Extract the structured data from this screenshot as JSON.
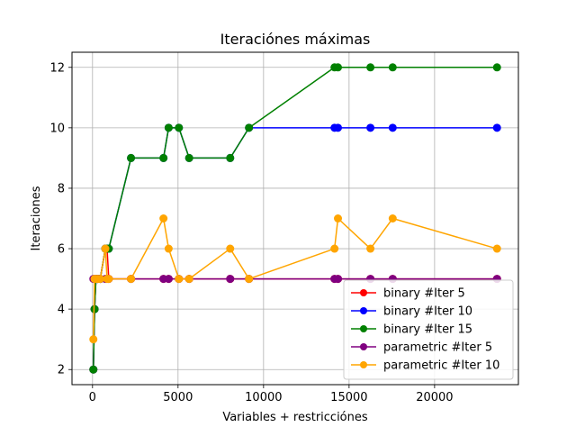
{
  "chart_data": {
    "type": "line",
    "title": "Iteraciónes máximas",
    "xlabel": "Variables + restricciónes",
    "ylabel": "Iteraciones",
    "xlim": [
      -1200,
      24900
    ],
    "ylim": [
      1.5,
      12.5
    ],
    "xticks": [
      0,
      5000,
      10000,
      15000,
      20000
    ],
    "yticks": [
      2,
      4,
      6,
      8,
      10,
      12
    ],
    "grid": true,
    "legend_position": "lower-right",
    "x": [
      50,
      120,
      200,
      300,
      450,
      750,
      850,
      950,
      2250,
      4150,
      4450,
      5050,
      5650,
      8050,
      9150,
      14150,
      14350,
      16250,
      17550,
      23650
    ],
    "series": [
      {
        "name": "binary #Iter 5",
        "color": "#ff0000",
        "values": [
          2,
          4,
          5,
          5,
          5,
          6,
          6,
          5,
          5,
          5,
          5,
          5,
          5,
          5,
          5,
          5,
          5,
          5,
          5,
          5
        ]
      },
      {
        "name": "binary #Iter 10",
        "color": "#0000ff",
        "values": [
          2,
          4,
          5,
          5,
          5,
          6,
          6,
          6,
          9,
          9,
          10,
          10,
          9,
          9,
          10,
          10,
          10,
          10,
          10,
          10
        ]
      },
      {
        "name": "binary #Iter 15",
        "color": "#008000",
        "values": [
          2,
          4,
          5,
          5,
          5,
          6,
          6,
          6,
          9,
          9,
          10,
          10,
          9,
          9,
          10,
          12,
          12,
          12,
          12,
          12
        ]
      },
      {
        "name": "parametric #Iter 5",
        "color": "#800080",
        "values": [
          5,
          5,
          5,
          5,
          5,
          5,
          5,
          5,
          5,
          5,
          5,
          5,
          5,
          5,
          5,
          5,
          5,
          5,
          5,
          5
        ]
      },
      {
        "name": "parametric #Iter 10",
        "color": "#ffa500",
        "values": [
          3,
          5,
          5,
          5,
          5,
          6,
          5,
          5,
          5,
          7,
          6,
          5,
          5,
          6,
          5,
          6,
          7,
          6,
          7,
          6
        ]
      }
    ]
  }
}
